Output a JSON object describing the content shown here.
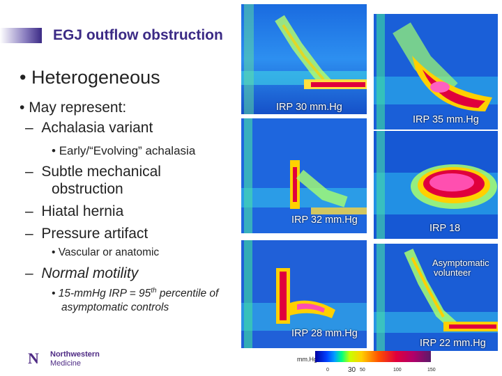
{
  "slide_title": "EGJ outflow obstruction",
  "bullets": {
    "main": "Heterogeneous",
    "sub1": "May represent:",
    "d1": "Achalasia variant",
    "d1a": "Early/“Evolving” achalasia",
    "d2a": "Subtle mechanical",
    "d2b": "obstruction",
    "d3": "Hiatal hernia",
    "d4": "Pressure artifact",
    "d4a": "Vascular or anatomic",
    "d5": "Normal motility",
    "d5a_1": "15-mmHg IRP = 95",
    "d5a_sup": "th",
    "d5a_2": " percentile of",
    "d5a_3": "asymptomatic controls"
  },
  "panels": {
    "p1": "IRP 30 mm.Hg",
    "p2": "IRP 35 mm.Hg",
    "p3": "IRP 32 mm.Hg",
    "p4": "IRP 18",
    "p5": "IRP 28 mm.Hg",
    "p6a": "Asymptomatic",
    "p6b": "volunteer",
    "p6c": "IRP 22 mm.Hg"
  },
  "logo": {
    "name1": "Northwestern",
    "name2": "Medicine"
  },
  "scale": {
    "label": "mm.Hg",
    "t0": "0",
    "t30": "30",
    "t50": "50",
    "t100": "100",
    "t150": "150"
  }
}
